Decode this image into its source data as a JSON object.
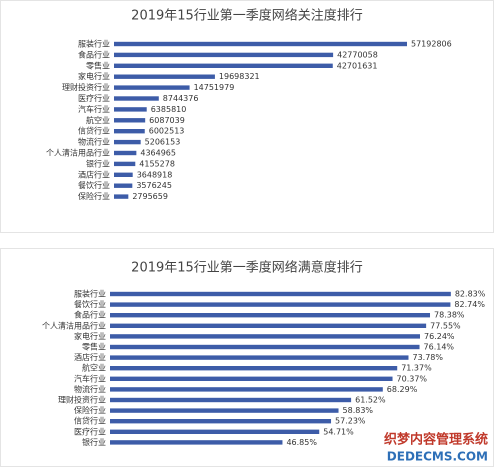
{
  "chart_data": [
    {
      "type": "bar",
      "orientation": "horizontal",
      "title": "2019年15行业第一季度网络关注度排行",
      "color": "#3d5ca8",
      "categories": [
        "服装行业",
        "食品行业",
        "零售业",
        "家电行业",
        "理财投资行业",
        "医疗行业",
        "汽车行业",
        "航空业",
        "信贷行业",
        "物流行业",
        "个人清洁用品行业",
        "银行业",
        "酒店行业",
        "餐饮行业",
        "保险行业"
      ],
      "values": [
        57192806,
        42770058,
        42701631,
        19698321,
        14751979,
        8744376,
        6385810,
        6087039,
        6002513,
        5206153,
        4364965,
        4155278,
        3648918,
        3576245,
        2795659
      ],
      "xlim": [
        0,
        65000000
      ]
    },
    {
      "type": "bar",
      "orientation": "horizontal",
      "title": "2019年15行业第一季度网络满意度排行",
      "color": "#3d5ca8",
      "categories": [
        "服装行业",
        "餐饮行业",
        "食品行业",
        "个人清洁用品行业",
        "家电行业",
        "零售业",
        "酒店行业",
        "航空业",
        "汽车行业",
        "物流行业",
        "理财投资行业",
        "保险行业",
        "信贷行业",
        "医疗行业",
        "银行业"
      ],
      "values": [
        82.83,
        82.74,
        78.38,
        77.55,
        76.24,
        76.14,
        73.78,
        71.37,
        70.37,
        68.29,
        61.52,
        58.83,
        57.23,
        54.71,
        46.85
      ],
      "value_labels": [
        "82.83%",
        "82.74%",
        "78.38%",
        "77.55%",
        "76.24%",
        "76.14%",
        "73.78%",
        "71.37%",
        "70.37%",
        "68.29%",
        "61.52%",
        "58.83%",
        "57.23%",
        "54.71%",
        "46.85%"
      ],
      "xlim": [
        10,
        85
      ]
    }
  ],
  "watermark": {
    "line1": "织梦内容管理系统",
    "line2": "DEDECMS.COM"
  }
}
